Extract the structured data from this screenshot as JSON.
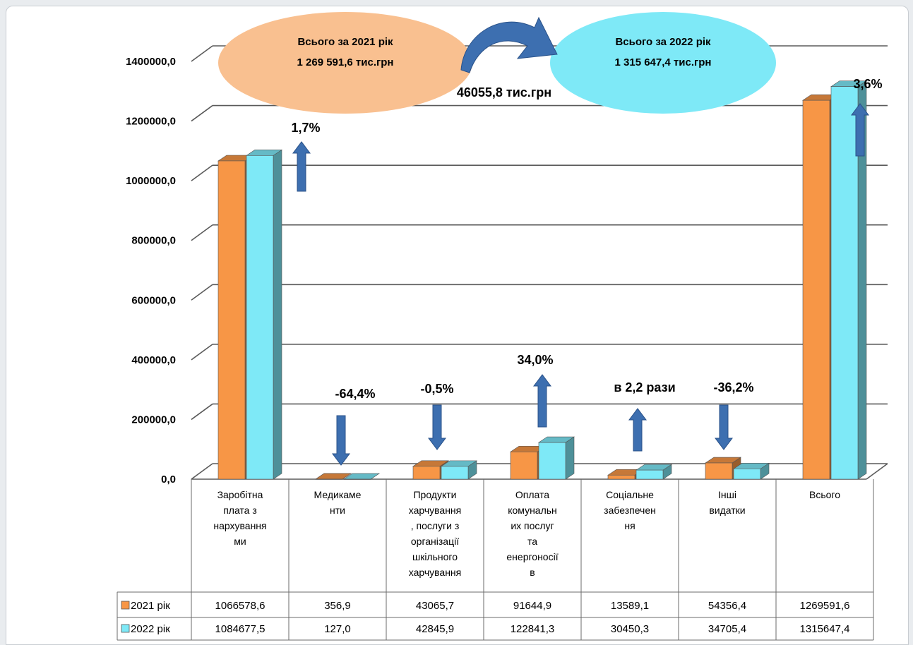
{
  "chart_data": {
    "type": "bar",
    "categories": [
      [
        "Заробітна",
        "плата з",
        "нархування",
        "ми"
      ],
      [
        "Медикаме",
        "нти"
      ],
      [
        "Продукти",
        "харчування",
        ", послуги з",
        "організації",
        "шкільного",
        "харчування"
      ],
      [
        "Оплата",
        "комунальн",
        "их послуг",
        "та",
        "енергоносії",
        "в"
      ],
      [
        "Соціальне",
        "забезпечен",
        "ня"
      ],
      [
        "Інші",
        "видатки"
      ],
      [
        "Всього"
      ]
    ],
    "series": [
      {
        "name": "2021 рік",
        "color": "#f79646",
        "values": [
          1066578.6,
          356.9,
          43065.7,
          91644.9,
          13589.1,
          54356.4,
          1269591.6
        ],
        "labels": [
          "1066578,6",
          "356,9",
          "43065,7",
          "91644,9",
          "13589,1",
          "54356,4",
          "1269591,6"
        ]
      },
      {
        "name": "2022 рік",
        "color": "#7ee9f7",
        "values": [
          1084677.5,
          127.0,
          42845.9,
          122841.3,
          30450.3,
          34705.4,
          1315647.4
        ],
        "labels": [
          "1084677,5",
          "127,0",
          "42845,9",
          "122841,3",
          "30450,3",
          "34705,4",
          "1315647,4"
        ]
      }
    ],
    "ylim": [
      0,
      1400000
    ],
    "yticks": [
      "0,0",
      "200000,0",
      "400000,0",
      "600000,0",
      "800000,0",
      "1000000,0",
      "1200000,0",
      "1400000,0"
    ],
    "grid": true,
    "legend": "data-table",
    "change_labels": [
      "1,7%",
      "-64,4%",
      "-0,5%",
      "34,0%",
      "в 2,2 рази",
      "-36,2%",
      "3,6%"
    ],
    "change_direction": [
      "up",
      "down",
      "down",
      "up",
      "up",
      "down",
      "up"
    ],
    "total_2021": {
      "line1": "Всього за 2021 рік",
      "line2": "1 269 591,6  тис.грн",
      "color": "#f9c090"
    },
    "total_2022": {
      "line1": "Всього за 2022 рік",
      "line2": "1 315 647,4  тис.грн",
      "color": "#7ee9f7"
    },
    "difference_label": "46055,8 тис.грн",
    "arrow_color": "#3d6fb0"
  }
}
